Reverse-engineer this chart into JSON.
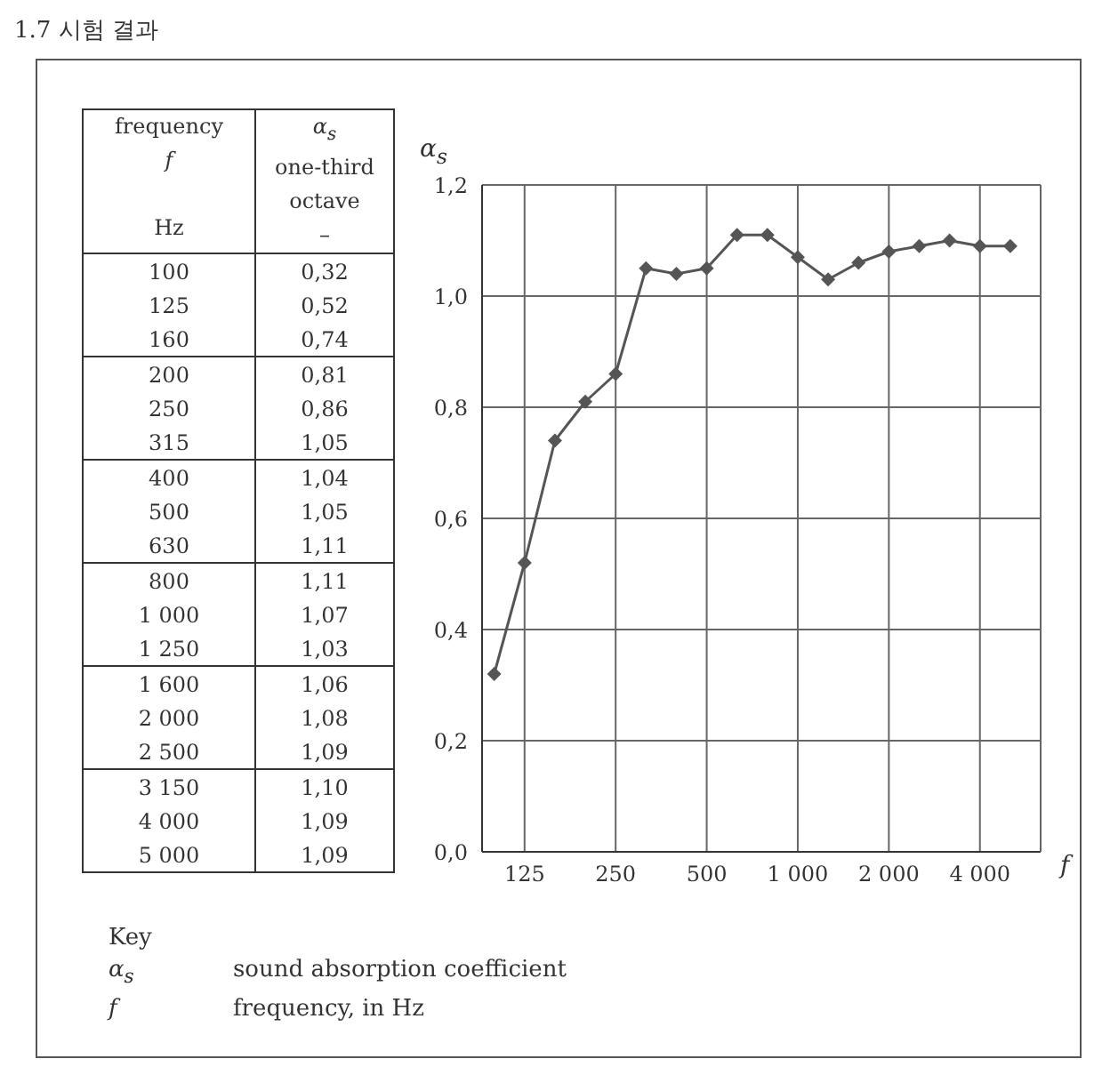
{
  "chart_data": [
    {
      "type": "other",
      "title": "1.7 시험 결과",
      "annotations": [
        "frequency",
        "f",
        "Hz",
        "α$_{s}$",
        "one-third octave",
        "–",
        "100",
        "0,32",
        "125",
        "0,52",
        "160",
        "0,74",
        "200",
        "0,81",
        "250",
        "0,86",
        "315",
        "1,05",
        "400",
        "1,04",
        "500",
        "1,05",
        "630",
        "1,11",
        "800",
        "1,11",
        "1 000",
        "1,07",
        "1 250",
        "1,03",
        "1 600",
        "1,06",
        "2 000",
        "1,08",
        "2 500",
        "1,09",
        "3 150",
        "1,10",
        "4 000",
        "1,09",
        "5 000",
        "1,09"
      ]
    },
    {
      "type": "line",
      "xlabel": "f",
      "ylabel": "α$_{s}$",
      "categories": [
        null,
        "125",
        null,
        null,
        "250",
        null,
        null,
        "500",
        null,
        null,
        "1 000",
        null,
        null,
        "2 000",
        null,
        null,
        "4 000",
        null
      ],
      "values": [
        0.32,
        0.52,
        0.74,
        0.81,
        0.86,
        1.05,
        1.04,
        1.05,
        1.11,
        1.11,
        1.07,
        1.03,
        1.06,
        1.08,
        1.09,
        1.1,
        1.09,
        1.09
      ],
      "color": "#555555",
      "marker": "diamond",
      "grid": true,
      "ylim": [
        0,
        1.2
      ],
      "yticks": [
        {
          "value": 0,
          "label": "0,0"
        },
        {
          "value": 0.2,
          "label": "0,2"
        },
        {
          "value": 0.4,
          "label": "0,4"
        },
        {
          "value": 0.6,
          "label": "0,6"
        },
        {
          "value": 0.8,
          "label": "0,8"
        },
        {
          "value": 1.0,
          "label": "1,0"
        },
        {
          "value": 1.2,
          "label": "1,2"
        }
      ],
      "annotations": [
        "Key",
        "α$_{s}$",
        "sound absorption coefficient",
        "f",
        "frequency, in Hz"
      ]
    }
  ]
}
